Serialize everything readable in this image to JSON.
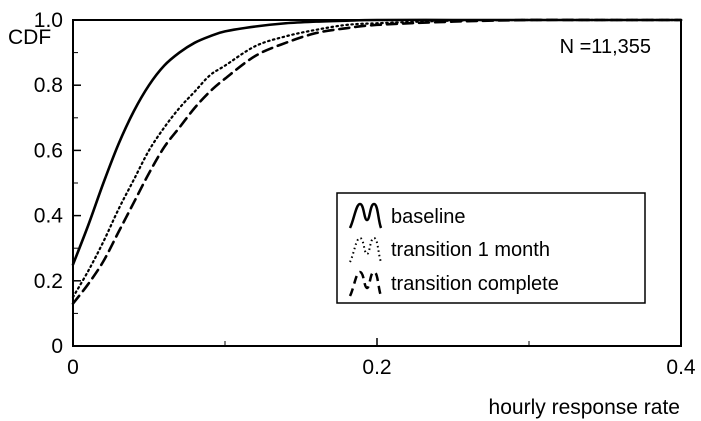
{
  "chart_data": {
    "type": "line",
    "title": "",
    "xlabel": "hourly response rate",
    "ylabel": "CDF",
    "xlim": [
      0,
      0.4
    ],
    "ylim": [
      0,
      1.0
    ],
    "x_ticks": [
      0,
      0.2,
      0.4
    ],
    "x_tick_labels": [
      "0",
      "0.2",
      "0.4"
    ],
    "y_ticks": [
      0,
      0.2,
      0.4,
      0.6,
      0.8,
      1.0
    ],
    "y_tick_labels": [
      "0",
      "0.2",
      "0.4",
      "0.6",
      "0.8",
      "1.0"
    ],
    "grid": false,
    "legend_position": "center-right",
    "annotation": "N =11,355",
    "series": [
      {
        "name": "baseline",
        "line_style": "solid",
        "x": [
          0,
          0.01,
          0.02,
          0.03,
          0.04,
          0.05,
          0.06,
          0.07,
          0.08,
          0.09,
          0.1,
          0.12,
          0.14,
          0.16,
          0.18,
          0.2,
          0.25,
          0.3,
          0.35,
          0.4
        ],
        "y": [
          0.25,
          0.37,
          0.5,
          0.62,
          0.72,
          0.8,
          0.86,
          0.9,
          0.93,
          0.95,
          0.965,
          0.98,
          0.99,
          0.995,
          0.998,
          1.0,
          1.0,
          1.0,
          1.0,
          1.0
        ]
      },
      {
        "name": "transition 1 month",
        "line_style": "dotted",
        "x": [
          0,
          0.01,
          0.02,
          0.03,
          0.04,
          0.05,
          0.06,
          0.07,
          0.08,
          0.09,
          0.1,
          0.12,
          0.14,
          0.16,
          0.18,
          0.2,
          0.25,
          0.3,
          0.35,
          0.4
        ],
        "y": [
          0.15,
          0.23,
          0.32,
          0.42,
          0.51,
          0.6,
          0.67,
          0.73,
          0.78,
          0.83,
          0.86,
          0.92,
          0.95,
          0.97,
          0.985,
          0.99,
          0.998,
          1.0,
          1.0,
          1.0
        ]
      },
      {
        "name": "transition complete",
        "line_style": "dashed",
        "x": [
          0,
          0.01,
          0.02,
          0.03,
          0.04,
          0.05,
          0.06,
          0.07,
          0.08,
          0.09,
          0.1,
          0.12,
          0.14,
          0.16,
          0.18,
          0.2,
          0.25,
          0.3,
          0.35,
          0.4
        ],
        "y": [
          0.13,
          0.19,
          0.26,
          0.35,
          0.44,
          0.53,
          0.61,
          0.67,
          0.73,
          0.78,
          0.82,
          0.89,
          0.93,
          0.96,
          0.975,
          0.985,
          0.995,
          1.0,
          1.0,
          1.0
        ]
      }
    ]
  }
}
